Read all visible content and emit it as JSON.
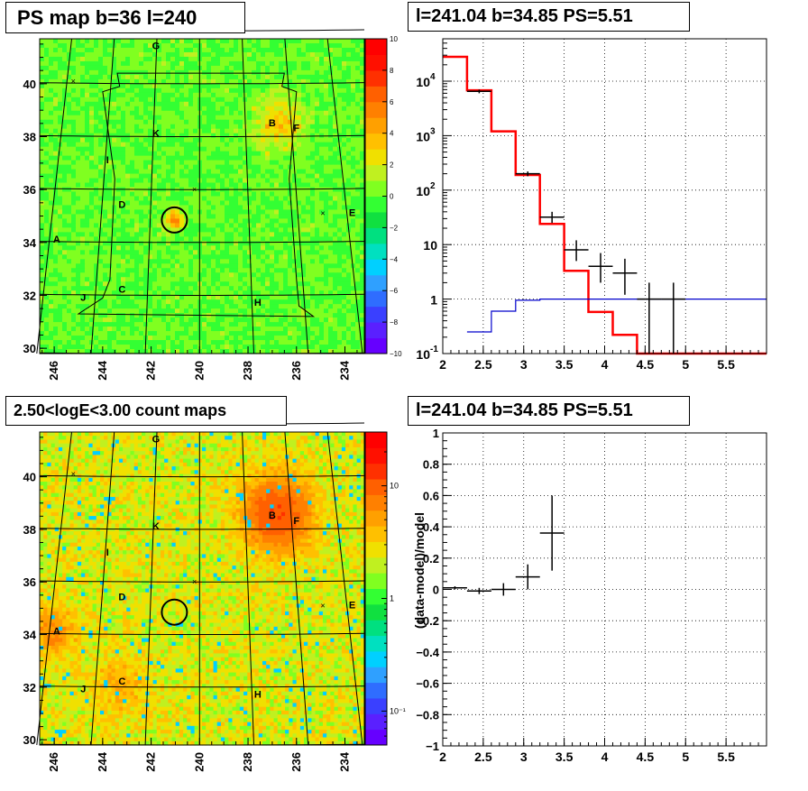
{
  "chart_data": [
    {
      "type": "heatmap",
      "title": "PS map b=36 l=240",
      "xlabel": "",
      "ylabel": "",
      "xlim": [
        246.6,
        233.2
      ],
      "ylim": [
        29.8,
        41.7
      ],
      "x_ticks": [
        "246",
        "244",
        "242",
        "240",
        "238",
        "236",
        "234"
      ],
      "y_ticks": [
        "30",
        "32",
        "34",
        "36",
        "38",
        "40"
      ],
      "colorbar": {
        "min": -10,
        "max": 10,
        "scale": "linear",
        "tick_labels": [
          "10",
          "8",
          "6",
          "4",
          "2",
          "0",
          "−2",
          "−4",
          "−6",
          "−8",
          "−10"
        ],
        "colors": [
          "#6600ff",
          "#5a20ff",
          "#3a40ff",
          "#2f6dff",
          "#2fa0ff",
          "#00d0ff",
          "#00e0c0",
          "#00e080",
          "#10e040",
          "#33ff33",
          "#80ff20",
          "#c0f020",
          "#f0e000",
          "#ffc000",
          "#ffa000",
          "#ff8000",
          "#ff6000",
          "#ff3000",
          "#ff1000",
          "#ff0000"
        ]
      },
      "markers": [
        {
          "label": "G",
          "l": 241.8,
          "b": 41.3
        },
        {
          "label": "K",
          "l": 241.8,
          "b": 38.0
        },
        {
          "label": "B",
          "l": 237.0,
          "b": 38.4
        },
        {
          "label": "F",
          "l": 236.0,
          "b": 38.2
        },
        {
          "label": "I",
          "l": 243.8,
          "b": 37.0
        },
        {
          "label": "D",
          "l": 243.2,
          "b": 35.3
        },
        {
          "label": "E",
          "l": 233.7,
          "b": 35.0
        },
        {
          "label": "A",
          "l": 245.9,
          "b": 34.0
        },
        {
          "label": "C",
          "l": 243.2,
          "b": 32.1
        },
        {
          "label": "J",
          "l": 244.8,
          "b": 31.8
        },
        {
          "label": "H",
          "l": 237.6,
          "b": 31.6
        }
      ],
      "target": {
        "l": 241.04,
        "b": 34.85
      }
    },
    {
      "type": "line",
      "title": "l=241.04 b=34.85 PS=5.51",
      "xlabel": "",
      "ylabel": "",
      "xlim": [
        2,
        6
      ],
      "ylim": [
        0.1,
        60000
      ],
      "y_scale": "log",
      "grid": true,
      "x_ticks": [
        "2",
        "2.5",
        "3",
        "3.5",
        "4",
        "4.5",
        "5",
        "5.5"
      ],
      "y_ticks": [
        "10^-1",
        "1",
        "10",
        "10^2",
        "10^3",
        "10^4"
      ],
      "series": [
        {
          "color": "#ff0000",
          "style": "step",
          "bins": [
            2.0,
            2.3,
            2.6,
            2.9,
            3.2,
            3.5,
            3.8,
            4.1,
            4.4,
            6.0
          ],
          "values": [
            28000,
            6800,
            1200,
            190,
            24,
            3.3,
            0.58,
            0.22,
            0.09
          ]
        },
        {
          "color": "#0000cc",
          "style": "step",
          "bins": [
            2.3,
            2.6,
            2.9,
            3.2,
            6.0
          ],
          "values": [
            0.25,
            0.6,
            0.95,
            1.0
          ]
        },
        {
          "color": "#000000",
          "style": "errorbar",
          "points": [
            {
              "x": 2.45,
              "y": 6500,
              "lo": 6000,
              "hi": 7000,
              "xerr": 0.15
            },
            {
              "x": 3.05,
              "y": 200,
              "lo": 180,
              "hi": 220,
              "xerr": 0.15
            },
            {
              "x": 3.35,
              "y": 32,
              "lo": 25,
              "hi": 40,
              "xerr": 0.15
            },
            {
              "x": 3.65,
              "y": 8,
              "lo": 5,
              "hi": 12,
              "xerr": 0.15
            },
            {
              "x": 3.95,
              "y": 4,
              "lo": 2,
              "hi": 7,
              "xerr": 0.15
            },
            {
              "x": 4.25,
              "y": 3,
              "lo": 1.2,
              "hi": 5.5,
              "xerr": 0.15
            },
            {
              "x": 4.55,
              "y": 1,
              "lo": 0.1,
              "hi": 2.0,
              "xerr": 0.15
            },
            {
              "x": 4.85,
              "y": 1,
              "lo": 0.1,
              "hi": 2.0,
              "xerr": 0.15
            }
          ]
        }
      ]
    },
    {
      "type": "heatmap",
      "title": "2.50<logE<3.00 count maps",
      "xlabel": "",
      "ylabel": "",
      "xlim": [
        246.6,
        233.2
      ],
      "ylim": [
        29.8,
        41.7
      ],
      "x_ticks": [
        "246",
        "244",
        "242",
        "240",
        "238",
        "236",
        "234"
      ],
      "y_ticks": [
        "30",
        "32",
        "34",
        "36",
        "38",
        "40"
      ],
      "colorbar": {
        "min": 0.05,
        "max": 30,
        "scale": "log",
        "tick_labels": [
          "10",
          "1",
          "10⁻¹"
        ],
        "colors": [
          "#6600ff",
          "#5a20ff",
          "#3a40ff",
          "#2f6dff",
          "#2fa0ff",
          "#00d0ff",
          "#00e0c0",
          "#00e080",
          "#10e040",
          "#33ff33",
          "#80ff20",
          "#c0f020",
          "#f0e000",
          "#ffc000",
          "#ffa000",
          "#ff8000",
          "#ff6000",
          "#ff3000",
          "#ff1000",
          "#ff0000"
        ]
      },
      "markers": [
        {
          "label": "G",
          "l": 241.8,
          "b": 41.3
        },
        {
          "label": "K",
          "l": 241.8,
          "b": 38.0
        },
        {
          "label": "B",
          "l": 237.0,
          "b": 38.4
        },
        {
          "label": "F",
          "l": 236.0,
          "b": 38.2
        },
        {
          "label": "I",
          "l": 243.8,
          "b": 37.0
        },
        {
          "label": "D",
          "l": 243.2,
          "b": 35.3
        },
        {
          "label": "E",
          "l": 233.7,
          "b": 35.0
        },
        {
          "label": "A",
          "l": 245.9,
          "b": 34.0
        },
        {
          "label": "C",
          "l": 243.2,
          "b": 32.1
        },
        {
          "label": "J",
          "l": 244.8,
          "b": 31.8
        },
        {
          "label": "H",
          "l": 237.6,
          "b": 31.6
        }
      ],
      "target": {
        "l": 241.04,
        "b": 34.85
      }
    },
    {
      "type": "scatter",
      "title": "l=241.04 b=34.85 PS=5.51",
      "xlabel": "",
      "ylabel": "(data-model)/model",
      "xlim": [
        2,
        6
      ],
      "ylim": [
        -1,
        1
      ],
      "grid": true,
      "x_ticks": [
        "2",
        "2.5",
        "3",
        "3.5",
        "4",
        "4.5",
        "5",
        "5.5"
      ],
      "y_ticks": [
        "−1",
        "−0.8",
        "−0.6",
        "−0.4",
        "−0.2",
        "0",
        "0.2",
        "0.4",
        "0.6",
        "0.8",
        "1"
      ],
      "series": [
        {
          "color": "#000000",
          "style": "errorbar",
          "points": [
            {
              "x": 2.15,
              "y": 0.01,
              "lo": 0.0,
              "hi": 0.02,
              "xerr": 0.15
            },
            {
              "x": 2.45,
              "y": -0.01,
              "lo": -0.03,
              "hi": 0.01,
              "xerr": 0.15
            },
            {
              "x": 2.75,
              "y": 0.0,
              "lo": -0.04,
              "hi": 0.04,
              "xerr": 0.15
            },
            {
              "x": 3.05,
              "y": 0.08,
              "lo": 0.0,
              "hi": 0.16,
              "xerr": 0.15
            },
            {
              "x": 3.35,
              "y": 0.36,
              "lo": 0.12,
              "hi": 0.6,
              "xerr": 0.15
            }
          ]
        }
      ]
    }
  ]
}
